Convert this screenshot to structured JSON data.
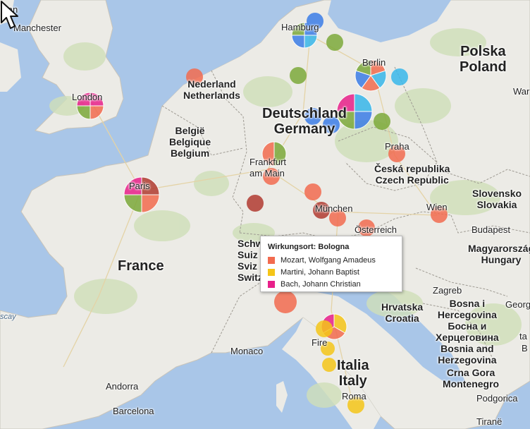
{
  "map": {
    "countries": [
      {
        "id": "poland",
        "lines": [
          "Polska",
          "Poland"
        ]
      },
      {
        "id": "germany",
        "lines": [
          "Deutschland",
          "Germany"
        ]
      },
      {
        "id": "netherlands",
        "lines": [
          "Nederland",
          "Netherlands"
        ]
      },
      {
        "id": "belgium",
        "lines": [
          "België",
          "Belgique",
          "Belgium"
        ]
      },
      {
        "id": "france",
        "lines": [
          "France"
        ]
      },
      {
        "id": "czech",
        "lines": [
          "Česká republika",
          "Czech Republic"
        ]
      },
      {
        "id": "slovakia",
        "lines": [
          "Slovensko",
          "Slovakia"
        ]
      },
      {
        "id": "hungary",
        "lines": [
          "Magyarország",
          "Hungary"
        ]
      },
      {
        "id": "croatia",
        "lines": [
          "Hrvatska",
          "Croatia"
        ]
      },
      {
        "id": "bosnia",
        "lines": [
          "Bosna i",
          "Hercegovina",
          "Босна и",
          "Херцеговина",
          "Bosnia and",
          "Herzegovina"
        ]
      },
      {
        "id": "montenegro",
        "lines": [
          "Crna Gora",
          "Montenegro"
        ]
      },
      {
        "id": "italy",
        "lines": [
          "Italia",
          "Italy"
        ]
      },
      {
        "id": "switzerland",
        "lines": [
          "Schw",
          "Suiz",
          "Sviz",
          "Switze"
        ]
      }
    ],
    "cities": {
      "man": "Man",
      "manchester": "Manchester",
      "london": "London",
      "paris": "Paris",
      "hamburg": "Hamburg",
      "berlin": "Berlin",
      "frankfurt": "Frankfurt am Main",
      "praha": "Praha",
      "wien": "Wien",
      "muenchen": "München",
      "oesterreich": "Österreich",
      "budapest": "Budapest",
      "zagreb": "Zagreb",
      "monaco": "Monaco",
      "firenze": "Fire",
      "roma": "Roma",
      "andorra": "Andorra",
      "barcelona": "Barcelona",
      "podgorica": "Podgorica",
      "tirane": "Tiranë",
      "war": "War",
      "georgia": "Georgi",
      "ta": "ta",
      "b": "B",
      "scay": "scay"
    }
  },
  "legend": {
    "colors": {
      "mozart": "#f26b4f",
      "martini": "#f5c518",
      "bach": "#e8208a",
      "green": "#7ca93a",
      "blue": "#3b7de6",
      "cyan": "#38b7ea",
      "darkred": "#b13b30"
    }
  },
  "tooltip": {
    "title": "Wirkungsort: Bologna",
    "items": [
      {
        "label": "Mozart, Wolfgang Amadeus",
        "color": "#f26b4f"
      },
      {
        "label": "Martini, Johann Baptist",
        "color": "#f5c518"
      },
      {
        "label": "Bach, Johann Christian",
        "color": "#e8208a"
      }
    ]
  }
}
